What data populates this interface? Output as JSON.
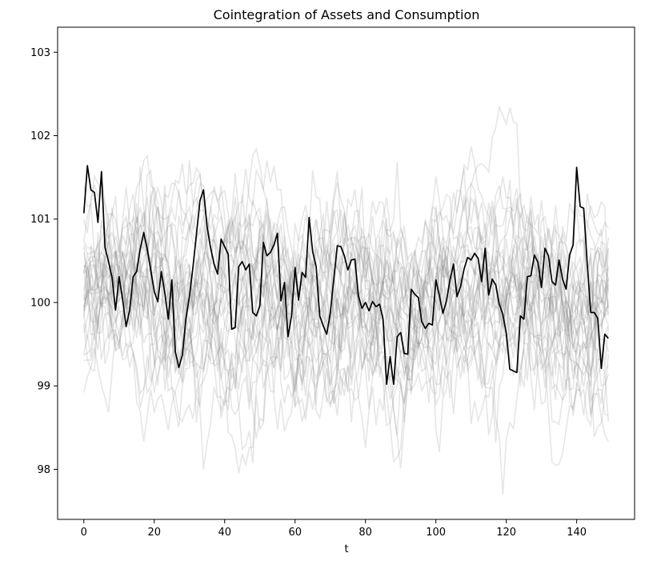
{
  "chart_data": {
    "type": "line",
    "title": "Cointegration of Assets and Consumption",
    "xlabel": "t",
    "ylabel": "",
    "xlim": [
      -7.45,
      156.45
    ],
    "ylim": [
      97.4,
      103.3
    ],
    "xticks": [
      0,
      20,
      40,
      60,
      80,
      100,
      120,
      140
    ],
    "yticks": [
      98,
      99,
      100,
      101,
      102,
      103
    ],
    "grid": false,
    "legend": "none",
    "colors": {
      "background_series": "#808080",
      "highlight_series": "#000000"
    },
    "n_background_series": 30,
    "highlight_series": {
      "x_start": 0,
      "values": [
        101.07,
        101.64,
        101.35,
        101.32,
        100.96,
        101.57,
        100.66,
        100.49,
        100.3,
        99.91,
        100.31,
        100.04,
        99.71,
        99.91,
        100.31,
        100.37,
        100.64,
        100.84,
        100.64,
        100.39,
        100.13,
        100.01,
        100.37,
        100.11,
        99.8,
        100.27,
        99.41,
        99.22,
        99.37,
        99.8,
        100.07,
        100.42,
        100.82,
        101.22,
        101.35,
        100.91,
        100.66,
        100.46,
        100.34,
        100.76,
        100.67,
        100.58,
        99.68,
        99.7,
        100.43,
        100.49,
        100.39,
        100.46,
        99.88,
        99.84,
        99.96,
        100.72,
        100.56,
        100.6,
        100.69,
        100.83,
        100.02,
        100.24,
        99.59,
        99.84,
        100.42,
        100.03,
        100.36,
        100.3,
        101.02,
        100.61,
        100.43,
        99.84,
        99.72,
        99.62,
        99.87,
        100.28,
        100.68,
        100.67,
        100.56,
        100.39,
        100.51,
        100.52,
        100.08,
        99.93,
        100.0,
        99.9,
        100.01,
        99.95,
        99.98,
        99.8,
        99.02,
        99.35,
        99.02,
        99.59,
        99.64,
        99.39,
        99.38,
        100.16,
        100.1,
        100.06,
        99.77,
        99.69,
        99.75,
        99.73,
        100.27,
        100.08,
        99.87,
        100.02,
        100.27,
        100.46,
        100.07,
        100.19,
        100.4,
        100.54,
        100.51,
        100.59,
        100.53,
        100.25,
        100.65,
        100.09,
        100.28,
        100.21,
        99.98,
        99.86,
        99.63,
        99.2,
        99.18,
        99.16,
        99.84,
        99.8,
        100.31,
        100.32,
        100.57,
        100.48,
        100.18,
        100.65,
        100.56,
        100.25,
        100.21,
        100.51,
        100.28,
        100.16,
        100.57,
        100.69,
        101.62,
        101.15,
        101.13,
        100.47,
        99.88,
        99.88,
        99.81,
        99.21,
        99.62,
        99.57
      ]
    }
  }
}
